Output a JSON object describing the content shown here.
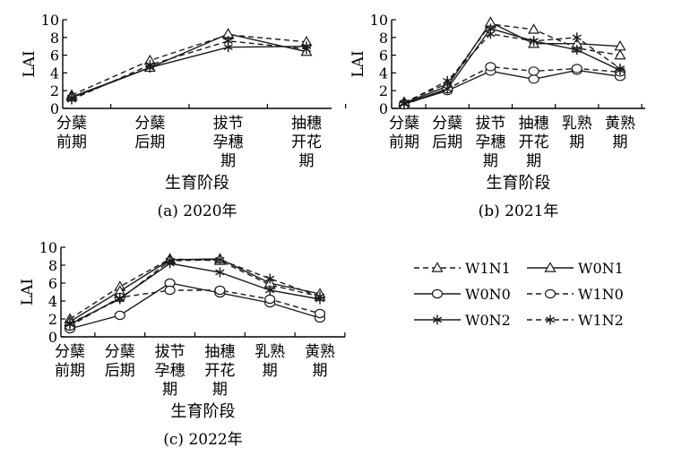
{
  "chart_data": [
    {
      "type": "line",
      "caption": "(a) 2020年",
      "ylabel": "LAI",
      "xlabel": "生育阶段",
      "ylim": [
        0,
        10
      ],
      "yticks": [
        0,
        2,
        4,
        6,
        8,
        10
      ],
      "categories": [
        [
          "分蘖",
          "前期"
        ],
        [
          "分蘖",
          "后期"
        ],
        [
          "拔节",
          "孕穗",
          "期"
        ],
        [
          "抽穗",
          "开花",
          "期"
        ]
      ],
      "series": [
        {
          "name": "W1N1",
          "values": [
            1.5,
            5.4,
            8.3,
            7.5
          ]
        },
        {
          "name": "W0N1",
          "values": [
            1.3,
            4.6,
            8.4,
            6.4
          ]
        },
        {
          "name": "W0N2",
          "values": [
            1.2,
            4.6,
            6.9,
            7.0
          ]
        },
        {
          "name": "W1N2",
          "values": [
            1.0,
            4.9,
            7.6,
            6.7
          ]
        }
      ]
    },
    {
      "type": "line",
      "caption": "(b) 2021年",
      "ylabel": "LAI",
      "xlabel": "生育阶段",
      "ylim": [
        0,
        10
      ],
      "yticks": [
        0,
        2,
        4,
        6,
        8,
        10
      ],
      "categories": [
        [
          "分蘖",
          "前期"
        ],
        [
          "分蘖",
          "后期"
        ],
        [
          "拔节",
          "孕穗",
          "期"
        ],
        [
          "抽穗",
          "开花",
          "期"
        ],
        [
          "乳熟",
          "期"
        ],
        [
          "黄熟",
          "期"
        ]
      ],
      "series": [
        {
          "name": "W1N1",
          "values": [
            0.7,
            2.8,
            9.5,
            8.9,
            6.8,
            6.0
          ]
        },
        {
          "name": "W0N1",
          "values": [
            0.6,
            2.5,
            9.7,
            7.3,
            7.3,
            7.0
          ]
        },
        {
          "name": "W0N0",
          "values": [
            0.5,
            2.0,
            4.2,
            3.3,
            4.3,
            3.6
          ]
        },
        {
          "name": "W1N0",
          "values": [
            0.4,
            2.2,
            4.7,
            4.2,
            4.5,
            4.1
          ]
        },
        {
          "name": "W0N2",
          "values": [
            0.5,
            2.2,
            9.0,
            7.6,
            6.6,
            4.3
          ]
        },
        {
          "name": "W1N2",
          "values": [
            0.6,
            3.1,
            8.4,
            7.6,
            8.0,
            4.5
          ]
        }
      ]
    },
    {
      "type": "line",
      "caption": "(c) 2022年",
      "ylabel": "LAI",
      "xlabel": "生育阶段",
      "ylim": [
        0,
        10
      ],
      "yticks": [
        0,
        2,
        4,
        6,
        8,
        10
      ],
      "categories": [
        [
          "分蘖",
          "前期"
        ],
        [
          "分蘖",
          "后期"
        ],
        [
          "拔节",
          "孕穗",
          "期"
        ],
        [
          "抽穗",
          "开花",
          "期"
        ],
        [
          "乳熟",
          "期"
        ],
        [
          "黄熟",
          "期"
        ]
      ],
      "series": [
        {
          "name": "W1N1",
          "values": [
            2.0,
            5.6,
            8.7,
            8.5,
            5.8,
            4.5
          ]
        },
        {
          "name": "W0N1",
          "values": [
            1.7,
            5.1,
            8.6,
            8.7,
            6.0,
            4.8
          ]
        },
        {
          "name": "W0N0",
          "values": [
            0.9,
            2.4,
            6.0,
            4.9,
            3.8,
            2.1
          ]
        },
        {
          "name": "W1N0",
          "values": [
            1.2,
            4.4,
            5.2,
            5.2,
            4.2,
            2.6
          ]
        },
        {
          "name": "W0N2",
          "values": [
            1.4,
            4.3,
            8.2,
            7.2,
            5.2,
            4.2
          ]
        },
        {
          "name": "W1N2",
          "values": [
            1.5,
            4.2,
            8.5,
            8.6,
            6.5,
            4.5
          ]
        }
      ]
    }
  ],
  "legend": [
    {
      "name": "W1N1",
      "dashed": true,
      "marker": "triangle"
    },
    {
      "name": "W0N1",
      "dashed": false,
      "marker": "triangle"
    },
    {
      "name": "W0N0",
      "dashed": false,
      "marker": "circle"
    },
    {
      "name": "W1N0",
      "dashed": true,
      "marker": "circle"
    },
    {
      "name": "W0N2",
      "dashed": false,
      "marker": "star"
    },
    {
      "name": "W1N2",
      "dashed": true,
      "marker": "star"
    }
  ],
  "series_style": {
    "W1N1": {
      "dashed": true,
      "marker": "triangle"
    },
    "W0N1": {
      "dashed": false,
      "marker": "triangle"
    },
    "W0N0": {
      "dashed": false,
      "marker": "circle"
    },
    "W1N0": {
      "dashed": true,
      "marker": "circle"
    },
    "W0N2": {
      "dashed": false,
      "marker": "star"
    },
    "W1N2": {
      "dashed": true,
      "marker": "star"
    }
  },
  "colors": {
    "line": "#1a1a1a",
    "axis": "#000000",
    "background": "#ffffff"
  }
}
